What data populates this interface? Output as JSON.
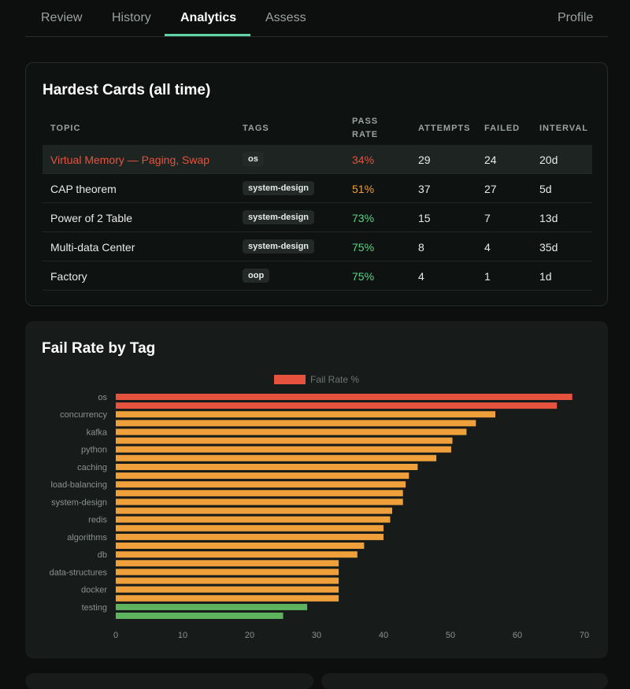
{
  "nav": {
    "tabs": [
      {
        "label": "Review",
        "active": false
      },
      {
        "label": "History",
        "active": false
      },
      {
        "label": "Analytics",
        "active": true
      },
      {
        "label": "Assess",
        "active": false
      }
    ],
    "profile_label": "Profile"
  },
  "hardest": {
    "title": "Hardest Cards (all time)",
    "headers": {
      "topic": "TOPIC",
      "tags": "TAGS",
      "pass_rate": "PASS RATE",
      "attempts": "ATTEMPTS",
      "failed": "FAILED",
      "interval": "INTERVAL"
    },
    "rows": [
      {
        "topic": "Virtual Memory — Paging, Swap",
        "tag": "os",
        "pass_rate": "34%",
        "attempts": "29",
        "failed": "24",
        "interval": "20d"
      },
      {
        "topic": "CAP theorem",
        "tag": "system-design",
        "pass_rate": "51%",
        "attempts": "37",
        "failed": "27",
        "interval": "5d"
      },
      {
        "topic": "Power of 2 Table",
        "tag": "system-design",
        "pass_rate": "73%",
        "attempts": "15",
        "failed": "7",
        "interval": "13d"
      },
      {
        "topic": "Multi-data Center",
        "tag": "system-design",
        "pass_rate": "75%",
        "attempts": "8",
        "failed": "4",
        "interval": "35d"
      },
      {
        "topic": "Factory",
        "tag": "oop",
        "pass_rate": "75%",
        "attempts": "4",
        "failed": "1",
        "interval": "1d"
      }
    ],
    "colors": {
      "highlight_row": "#1d2422",
      "pass_red": "#e5533f",
      "pass_orange": "#f0a03a",
      "pass_green": "#5fd388"
    }
  },
  "fail_rate": {
    "title": "Fail Rate by Tag",
    "chart_data": {
      "type": "bar",
      "orientation": "horizontal",
      "legend": {
        "label": "Fail Rate %",
        "placement": "top-center",
        "color": "#e5533f"
      },
      "xlim": [
        0,
        70
      ],
      "x_ticks": [
        0,
        10,
        20,
        30,
        40,
        50,
        60,
        70
      ],
      "categories": [
        "os",
        "",
        "concurrency",
        "",
        "kafka",
        "",
        "python",
        "",
        "caching",
        "",
        "load-balancing",
        "",
        "system-design",
        "",
        "redis",
        "",
        "algorithms",
        "",
        "db",
        "",
        "data-structures",
        "",
        "docker",
        "",
        "testing",
        ""
      ],
      "values": [
        68.2,
        65.9,
        56.7,
        53.8,
        52.4,
        50.3,
        50.1,
        47.9,
        45.1,
        43.8,
        43.3,
        42.9,
        42.9,
        41.3,
        41.0,
        40.0,
        40.0,
        37.1,
        36.1,
        33.3,
        33.3,
        33.3,
        33.3,
        33.3,
        28.6,
        25.0
      ],
      "bar_colors": [
        "#e5533f",
        "#e5533f",
        "#f0a03a",
        "#f0a03a",
        "#f0a03a",
        "#f0a03a",
        "#f0a03a",
        "#f0a03a",
        "#f0a03a",
        "#f0a03a",
        "#f0a03a",
        "#f0a03a",
        "#f0a03a",
        "#f0a03a",
        "#f0a03a",
        "#f0a03a",
        "#f0a03a",
        "#f0a03a",
        "#f0a03a",
        "#f0a03a",
        "#f0a03a",
        "#f0a03a",
        "#f0a03a",
        "#f0a03a",
        "#5fb35f",
        "#5fb35f"
      ],
      "grid": false
    }
  }
}
